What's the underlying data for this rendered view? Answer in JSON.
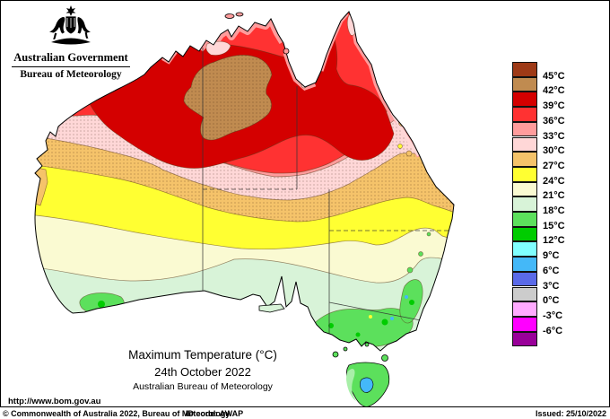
{
  "header": {
    "government": "Australian Government",
    "bureau": "Bureau of Meteorology"
  },
  "legend": {
    "swatches": [
      {
        "color": "#9E3A17",
        "label": "45°C",
        "dotted": false
      },
      {
        "color": "#C08B50",
        "label": "42°C",
        "dotted": true
      },
      {
        "color": "#D40000",
        "label": "39°C",
        "dotted": false
      },
      {
        "color": "#FF3232",
        "label": "36°C",
        "dotted": false
      },
      {
        "color": "#FF9C9C",
        "label": "33°C",
        "dotted": false
      },
      {
        "color": "#FFD7D7",
        "label": "30°C",
        "dotted": true
      },
      {
        "color": "#F5C36A",
        "label": "27°C",
        "dotted": true
      },
      {
        "color": "#FFFF32",
        "label": "24°C",
        "dotted": false
      },
      {
        "color": "#FAFAD2",
        "label": "21°C",
        "dotted": false
      },
      {
        "color": "#D8F3D8",
        "label": "18°C",
        "dotted": false
      },
      {
        "color": "#5CE05C",
        "label": "15°C",
        "dotted": false
      },
      {
        "color": "#00CC00",
        "label": "12°C",
        "dotted": true
      },
      {
        "color": "#80FFFF",
        "label": "9°C",
        "dotted": false
      },
      {
        "color": "#44B8F8",
        "label": "6°C",
        "dotted": true
      },
      {
        "color": "#5A6AE8",
        "label": "3°C",
        "dotted": false
      },
      {
        "color": "#CCCCCC",
        "label": "0°C",
        "dotted": false
      },
      {
        "color": "#FFAAFF",
        "label": "-3°C",
        "dotted": true
      },
      {
        "color": "#FF00FF",
        "label": "-6°C",
        "dotted": false
      },
      {
        "color": "#990099",
        "label": null,
        "dotted": true
      }
    ]
  },
  "caption": {
    "title": "Maximum Temperature (°C)",
    "date": "24th October 2022",
    "org": "Australian Bureau of Meteorology"
  },
  "footer": {
    "url": "http://www.bom.gov.au",
    "copyright": "© Commonwealth of Australia 2022, Bureau of Meteorology",
    "id_code": "ID code: AWAP",
    "issued": "Issued: 25/10/2022"
  }
}
